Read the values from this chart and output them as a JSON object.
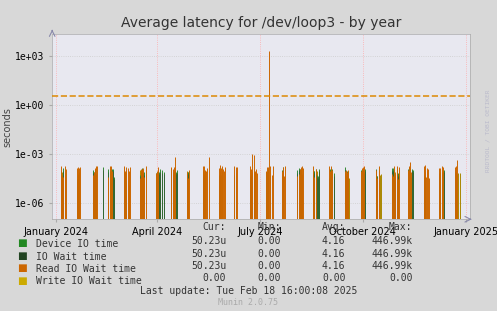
{
  "title": "Average latency for /dev/loop3 - by year",
  "ylabel": "seconds",
  "fig_bg_color": "#d8d8d8",
  "plot_bg_color": "#e8e8f0",
  "grid_h_color": "#cccccc",
  "grid_v_color": "#ffaaaa",
  "yticks": [
    1e-06,
    0.001,
    1.0,
    1000.0
  ],
  "ytick_labels": [
    "1e-06",
    "1e-03",
    "1e+00",
    "1e+03"
  ],
  "xtick_labels": [
    "January 2024",
    "April 2024",
    "July 2024",
    "October 2024",
    "January 2025"
  ],
  "hline_value": 3.5,
  "hline_color": "#dd8800",
  "series_colors": {
    "device_io": "#338833",
    "io_wait": "#336633",
    "read_io_wait": "#cc6600",
    "write_io_wait": "#aa8800"
  },
  "legend_items": [
    {
      "label": "Device IO time",
      "color": "#228822"
    },
    {
      "label": "IO Wait time",
      "color": "#224422"
    },
    {
      "label": "Read IO Wait time",
      "color": "#cc6600"
    },
    {
      "label": "Write IO Wait time",
      "color": "#ccaa00"
    }
  ],
  "legend_cols": [
    "Cur:",
    "Min:",
    "Avg:",
    "Max:"
  ],
  "legend_data": [
    [
      "50.23u",
      "0.00",
      "4.16",
      "446.99k"
    ],
    [
      "50.23u",
      "0.00",
      "4.16",
      "446.99k"
    ],
    [
      "50.23u",
      "0.00",
      "4.16",
      "446.99k"
    ],
    [
      "0.00",
      "0.00",
      "0.00",
      "0.00"
    ]
  ],
  "last_update": "Last update: Tue Feb 18 16:00:08 2025",
  "watermark": "Munin 2.0.75",
  "rrdtool_label": "RRDTOOL / TOBI OETIKER",
  "title_fontsize": 10,
  "axis_fontsize": 7,
  "legend_fontsize": 7
}
